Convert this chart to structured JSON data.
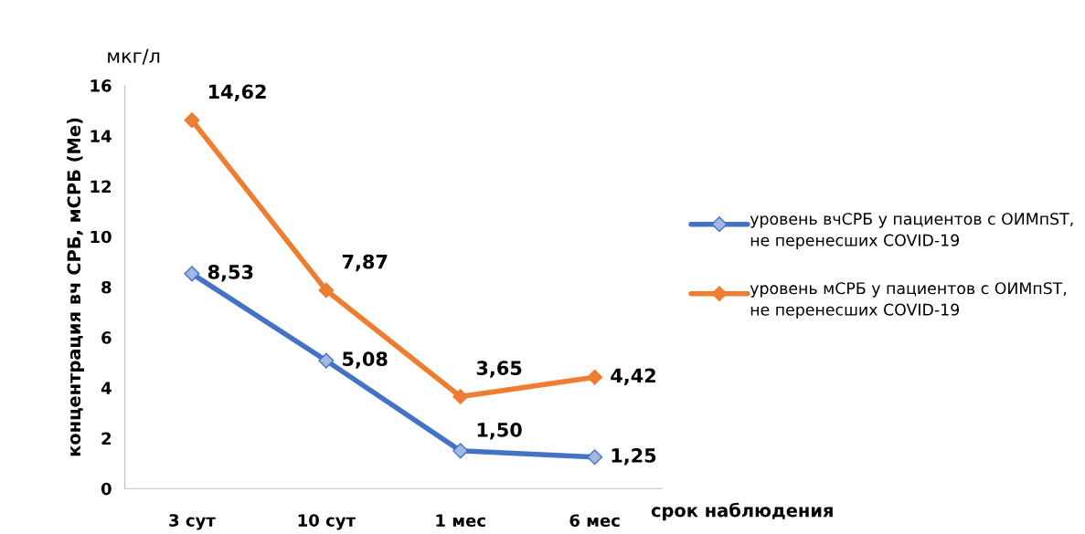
{
  "chart_data": {
    "type": "line",
    "ylabel": "концентрация вч СРБ, мСРБ (Ме)",
    "xlabel": "срок наблюдения",
    "annotations": [
      "мкг/л"
    ],
    "categories": [
      "3 сут",
      "10 сут",
      "1 мес",
      "6 мес"
    ],
    "series": [
      {
        "name": "уровень вчСРБ у пациентов с ОИМпST, не перенесших COVID-19",
        "color": "#4472c4",
        "values": [
          8.53,
          5.08,
          1.5,
          1.25
        ],
        "value_labels": [
          "8,53",
          "5,08",
          "1,50",
          "1,25"
        ]
      },
      {
        "name": "уровень мСРБ у пациентов с ОИМпST, не перенесших COVID-19",
        "color": "#ed7d31",
        "values": [
          14.62,
          7.87,
          3.65,
          4.42
        ],
        "value_labels": [
          "14,62",
          "7,87",
          "3,65",
          "4,42"
        ]
      }
    ],
    "ylim": [
      0,
      16
    ],
    "yticks": [
      0,
      2,
      4,
      6,
      8,
      10,
      12,
      14,
      16
    ],
    "grid": false,
    "legend": "right",
    "marker": "diamond",
    "line_style": "solid"
  }
}
